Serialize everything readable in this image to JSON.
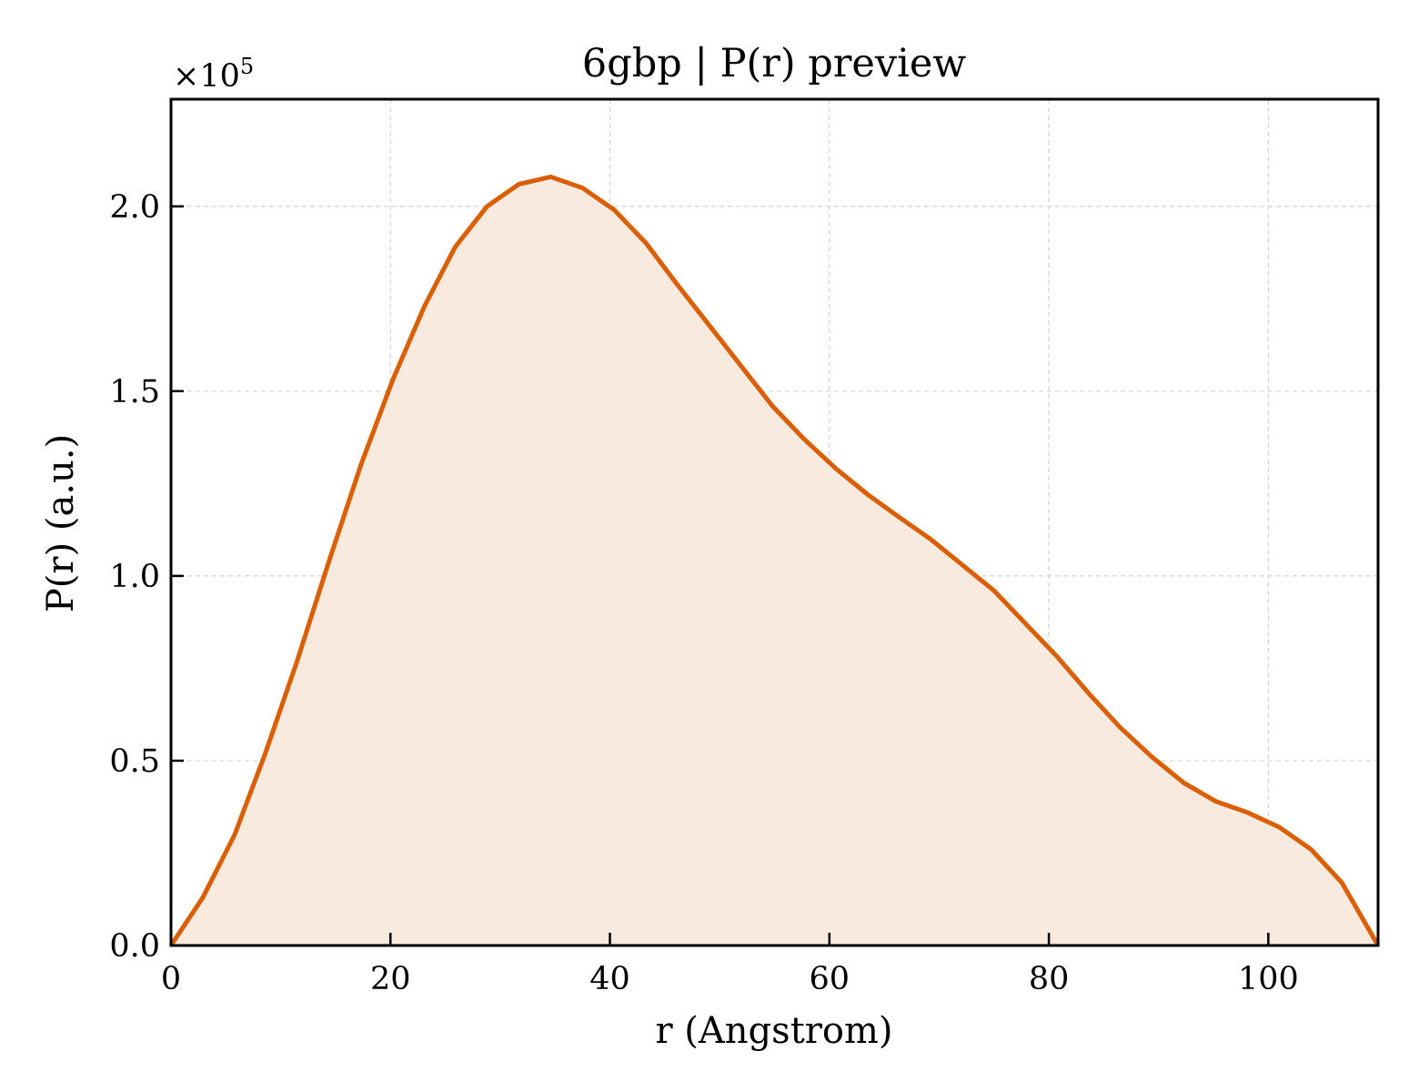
{
  "chart_data": {
    "type": "area",
    "title": "6gbp | P(r) preview",
    "xlabel": "r (Angstrom)",
    "ylabel": "P(r) (a.u.)",
    "y_scale_label": {
      "prefix": "×10",
      "exponent": "5"
    },
    "xlim": [
      0,
      110
    ],
    "ylim": [
      0,
      2.29
    ],
    "x_ticks": [
      0,
      20,
      40,
      60,
      80,
      100
    ],
    "y_ticks": [
      0.0,
      0.5,
      1.0,
      1.5,
      2.0
    ],
    "x_tick_labels": [
      "0",
      "20",
      "40",
      "60",
      "80",
      "100"
    ],
    "y_tick_labels": [
      "0.0",
      "0.5",
      "1.0",
      "1.5",
      "2.0"
    ],
    "grid": true,
    "legend": "none",
    "color": "#d95f02",
    "fill_color": "#f8eadf",
    "series": [
      {
        "x": [
          0,
          2.9,
          5.8,
          8.6,
          11.5,
          14.4,
          17.3,
          20.2,
          23.1,
          25.9,
          28.8,
          31.7,
          34.6,
          37.5,
          40.4,
          43.3,
          46.1,
          49.0,
          51.9,
          54.8,
          57.7,
          60.6,
          63.5,
          66.3,
          69.2,
          72.1,
          75.0,
          77.9,
          80.8,
          83.7,
          86.5,
          89.4,
          92.3,
          95.2,
          98.1,
          101.0,
          103.9,
          106.7,
          110.0
        ],
        "y": [
          0.0,
          0.13,
          0.3,
          0.52,
          0.77,
          1.04,
          1.3,
          1.53,
          1.73,
          1.89,
          2.0,
          2.06,
          2.08,
          2.05,
          1.99,
          1.9,
          1.79,
          1.68,
          1.57,
          1.46,
          1.37,
          1.29,
          1.22,
          1.16,
          1.1,
          1.03,
          0.96,
          0.87,
          0.78,
          0.68,
          0.59,
          0.51,
          0.44,
          0.39,
          0.36,
          0.32,
          0.26,
          0.17,
          0.0
        ]
      }
    ]
  }
}
